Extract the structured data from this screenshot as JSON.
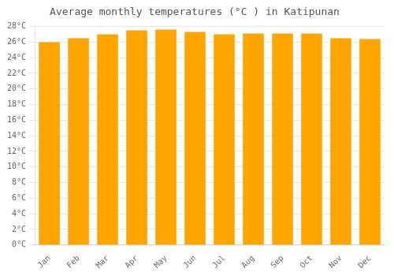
{
  "chart_data": {
    "type": "bar",
    "title": "Average monthly temperatures (°C ) in Katipunan",
    "categories": [
      "Jan",
      "Feb",
      "Mar",
      "Apr",
      "May",
      "Jun",
      "Jul",
      "Aug",
      "Sep",
      "Oct",
      "Nov",
      "Dec"
    ],
    "values": [
      26.0,
      26.5,
      27.0,
      27.5,
      27.6,
      27.3,
      27.0,
      27.1,
      27.1,
      27.1,
      26.5,
      26.4
    ],
    "color": "#FFA500",
    "ylim": [
      0,
      28.2
    ],
    "yticks": [
      {
        "value": 0,
        "label": "0°C"
      },
      {
        "value": 2,
        "label": "2°C"
      },
      {
        "value": 4,
        "label": "4°C"
      },
      {
        "value": 6,
        "label": "6°C"
      },
      {
        "value": 8,
        "label": "8°C"
      },
      {
        "value": 10,
        "label": "10°C"
      },
      {
        "value": 12,
        "label": "12°C"
      },
      {
        "value": 14,
        "label": "14°C"
      },
      {
        "value": 16,
        "label": "16°C"
      },
      {
        "value": 18,
        "label": "18°C"
      },
      {
        "value": 20,
        "label": "20°C"
      },
      {
        "value": 22,
        "label": "22°C"
      },
      {
        "value": 24,
        "label": "24°C"
      },
      {
        "value": 26,
        "label": "26°C"
      },
      {
        "value": 28,
        "label": "28°C"
      }
    ],
    "grid": true
  }
}
